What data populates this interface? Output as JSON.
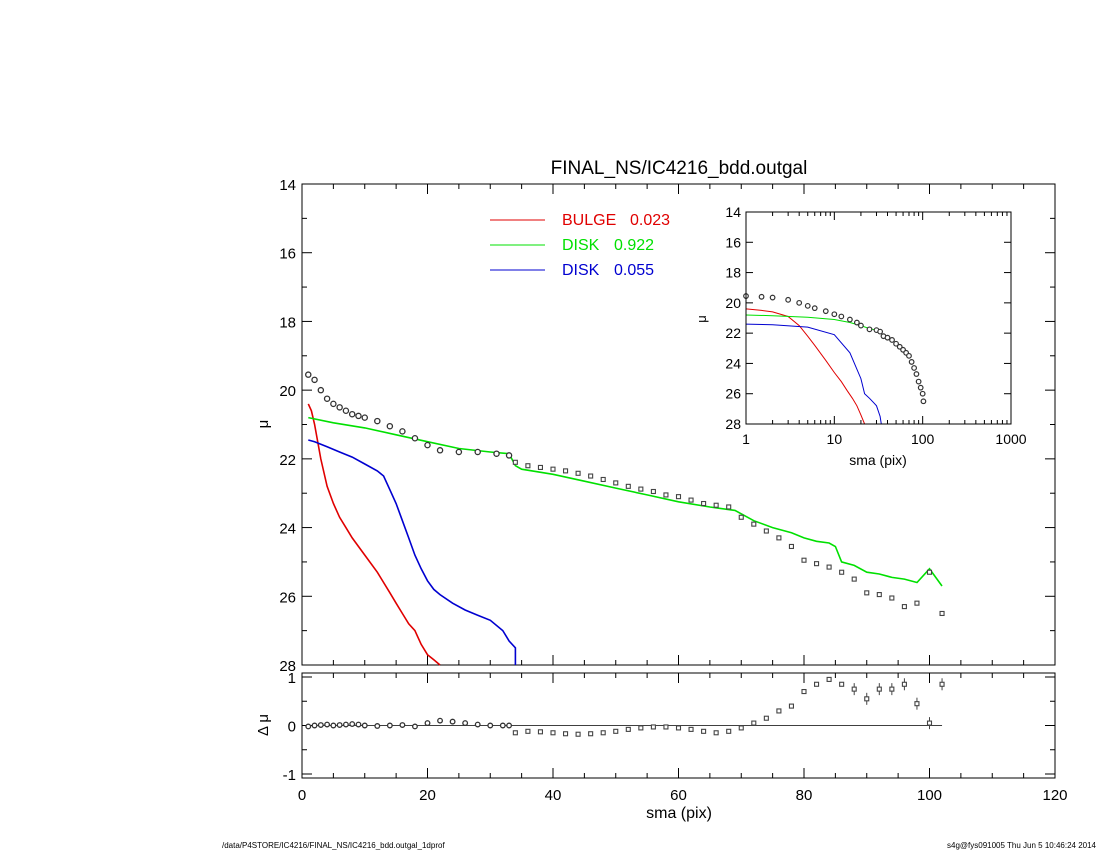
{
  "footer": {
    "left": "/data/P4STORE/IC4216/FINAL_NS/IC4216_bdd.outgal_1dprof",
    "right": "s4g@fys091005  Thu Jun  5 10:46:24 2014"
  },
  "chart_data": [
    {
      "id": "main",
      "type": "scatter",
      "title": "FINAL_NS/IC4216_bdd.outgal",
      "xlabel": "",
      "ylabel": "μ",
      "xlim": [
        0,
        120
      ],
      "ylim": [
        28,
        14
      ],
      "yticks": [
        14,
        16,
        18,
        20,
        22,
        24,
        26,
        28
      ],
      "grid": false,
      "legend_position": "top-center",
      "legend": [
        {
          "name": "BULGE",
          "value": "0.023",
          "color": "#e00000"
        },
        {
          "name": "DISK",
          "value": "0.922",
          "color": "#00e000"
        },
        {
          "name": "DISK",
          "value": "0.055",
          "color": "#0000d0"
        }
      ],
      "series": [
        {
          "kind": "model",
          "component": "bulge",
          "color": "#e00000",
          "x": [
            1,
            1.5,
            2,
            3,
            4,
            5,
            6,
            7,
            8,
            10,
            12,
            14,
            15,
            16,
            17,
            18,
            19,
            20,
            21,
            22
          ],
          "y": [
            20.4,
            20.6,
            21.0,
            22.0,
            22.8,
            23.3,
            23.7,
            24.0,
            24.3,
            24.8,
            25.3,
            25.9,
            26.2,
            26.5,
            26.8,
            27.0,
            27.4,
            27.7,
            27.85,
            28.0
          ]
        },
        {
          "kind": "model",
          "component": "disk1",
          "color": "#00e000",
          "x": [
            1,
            5,
            10,
            15,
            20,
            25,
            30,
            33,
            34,
            35,
            40,
            45,
            50,
            55,
            60,
            65,
            69,
            72,
            75,
            78,
            80,
            82,
            84,
            85,
            86,
            88,
            90,
            92,
            94,
            96,
            98,
            100,
            102
          ],
          "y": [
            20.8,
            20.95,
            21.1,
            21.3,
            21.5,
            21.7,
            21.8,
            21.85,
            22.2,
            22.3,
            22.45,
            22.65,
            22.85,
            23.05,
            23.25,
            23.4,
            23.5,
            23.8,
            24.0,
            24.15,
            24.3,
            24.4,
            24.45,
            24.55,
            25.0,
            25.1,
            25.3,
            25.35,
            25.45,
            25.5,
            25.6,
            25.2,
            25.7
          ]
        },
        {
          "kind": "model",
          "component": "disk2",
          "color": "#0000d0",
          "x": [
            1,
            2,
            4,
            6,
            8,
            10,
            12,
            13,
            14,
            15,
            16,
            17,
            18,
            19,
            20,
            21,
            22,
            24,
            26,
            28,
            30,
            32,
            33,
            34,
            34
          ],
          "y": [
            21.45,
            21.5,
            21.65,
            21.8,
            21.95,
            22.15,
            22.35,
            22.5,
            22.9,
            23.3,
            23.8,
            24.3,
            24.8,
            25.2,
            25.55,
            25.8,
            25.95,
            26.2,
            26.4,
            26.55,
            26.7,
            27.0,
            27.3,
            27.5,
            28.0
          ]
        },
        {
          "kind": "data",
          "component": "galaxy",
          "color": "#000000",
          "x": [
            1,
            2,
            3,
            4,
            5,
            6,
            7,
            8,
            9,
            10,
            12,
            14,
            16,
            18,
            20,
            22,
            25,
            28,
            31,
            33,
            34,
            36,
            38,
            40,
            42,
            44,
            46,
            48,
            50,
            52,
            54,
            56,
            58,
            60,
            62,
            64,
            66,
            68,
            70,
            72,
            74,
            76,
            78,
            80,
            82,
            84,
            86,
            88,
            90,
            92,
            94,
            96,
            98,
            100,
            102
          ],
          "y": [
            19.55,
            19.7,
            20.0,
            20.25,
            20.4,
            20.5,
            20.6,
            20.7,
            20.75,
            20.8,
            20.9,
            21.05,
            21.2,
            21.4,
            21.6,
            21.75,
            21.8,
            21.8,
            21.85,
            21.9,
            22.1,
            22.2,
            22.25,
            22.3,
            22.35,
            22.42,
            22.5,
            22.6,
            22.7,
            22.8,
            22.88,
            22.95,
            23.05,
            23.1,
            23.2,
            23.3,
            23.35,
            23.4,
            23.7,
            23.9,
            24.1,
            24.3,
            24.55,
            24.95,
            25.05,
            25.15,
            25.3,
            25.5,
            25.9,
            25.95,
            26.05,
            26.3,
            26.2,
            25.3,
            26.5
          ]
        }
      ]
    },
    {
      "id": "residual",
      "type": "scatter",
      "xlabel": "sma (pix)",
      "ylabel": "Δ μ",
      "xlim": [
        0,
        120
      ],
      "ylim": [
        -1,
        1
      ],
      "xticks": [
        0,
        20,
        40,
        60,
        80,
        100,
        120
      ],
      "yticks": [
        1,
        0,
        -1
      ],
      "series": [
        {
          "kind": "data",
          "color": "#000000",
          "x": [
            1,
            2,
            3,
            4,
            5,
            6,
            7,
            8,
            9,
            10,
            12,
            14,
            16,
            18,
            20,
            22,
            24,
            26,
            28,
            30,
            32,
            33,
            34,
            36,
            38,
            40,
            42,
            44,
            46,
            48,
            50,
            52,
            54,
            56,
            58,
            60,
            62,
            64,
            66,
            68,
            70,
            72,
            74,
            76,
            78,
            80,
            82,
            84,
            86,
            88,
            90,
            92,
            94,
            96,
            98,
            100,
            102
          ],
          "y": [
            -0.02,
            0.0,
            0.01,
            0.02,
            0.0,
            0.01,
            0.02,
            0.03,
            0.02,
            0.0,
            -0.01,
            0.0,
            0.01,
            -0.02,
            0.05,
            0.1,
            0.08,
            0.05,
            0.02,
            0.0,
            0.0,
            0.0,
            -0.15,
            -0.12,
            -0.13,
            -0.15,
            -0.17,
            -0.18,
            -0.17,
            -0.15,
            -0.12,
            -0.08,
            -0.05,
            -0.03,
            -0.03,
            -0.05,
            -0.08,
            -0.12,
            -0.15,
            -0.12,
            -0.05,
            0.05,
            0.15,
            0.3,
            0.4,
            0.7,
            0.85,
            0.95,
            0.85,
            0.75,
            0.55,
            0.75,
            0.75,
            0.85,
            0.45,
            0.05,
            0.85
          ]
        }
      ]
    },
    {
      "id": "inset",
      "type": "scatter",
      "xlabel": "sma (pix)",
      "ylabel": "μ",
      "xscale": "log",
      "xlim": [
        1,
        1000
      ],
      "ylim": [
        28,
        14
      ],
      "xticks": [
        1,
        10,
        100,
        1000
      ],
      "yticks": [
        14,
        16,
        18,
        20,
        22,
        24,
        26,
        28
      ],
      "series": [
        {
          "kind": "model",
          "component": "bulge",
          "color": "#e00000",
          "x": [
            1,
            1.5,
            2,
            3,
            4,
            5,
            6,
            8,
            10,
            12,
            14,
            16,
            18,
            20,
            22
          ],
          "y": [
            20.4,
            20.5,
            20.6,
            20.9,
            21.5,
            22.2,
            22.8,
            23.8,
            24.6,
            25.2,
            25.8,
            26.3,
            26.8,
            27.4,
            28.0
          ]
        },
        {
          "kind": "model",
          "component": "disk1",
          "color": "#00e000",
          "x": [
            1,
            2,
            5,
            10,
            15,
            20,
            25,
            30,
            33
          ],
          "y": [
            20.8,
            20.85,
            20.95,
            21.1,
            21.3,
            21.5,
            21.7,
            21.8,
            21.85
          ]
        },
        {
          "kind": "model",
          "component": "disk2",
          "color": "#0000d0",
          "x": [
            1,
            2,
            5,
            10,
            15,
            20,
            22,
            25,
            28,
            30,
            33,
            34
          ],
          "y": [
            21.4,
            21.45,
            21.6,
            22.1,
            23.3,
            25.0,
            26.0,
            26.3,
            26.6,
            26.8,
            27.5,
            28.0
          ]
        },
        {
          "kind": "data",
          "component": "galaxy",
          "color": "#000000",
          "x": [
            1,
            1.5,
            2,
            3,
            4,
            5,
            6,
            8,
            10,
            12,
            15,
            18,
            20,
            25,
            30,
            33,
            36,
            40,
            45,
            50,
            55,
            60,
            65,
            70,
            75,
            80,
            85,
            90,
            95,
            100,
            102
          ],
          "y": [
            19.55,
            19.6,
            19.65,
            19.8,
            20.0,
            20.2,
            20.35,
            20.55,
            20.75,
            20.9,
            21.1,
            21.3,
            21.5,
            21.75,
            21.8,
            21.9,
            22.2,
            22.3,
            22.45,
            22.7,
            22.9,
            23.1,
            23.3,
            23.5,
            23.9,
            24.3,
            24.7,
            25.2,
            25.6,
            26.0,
            26.5
          ]
        }
      ]
    }
  ]
}
